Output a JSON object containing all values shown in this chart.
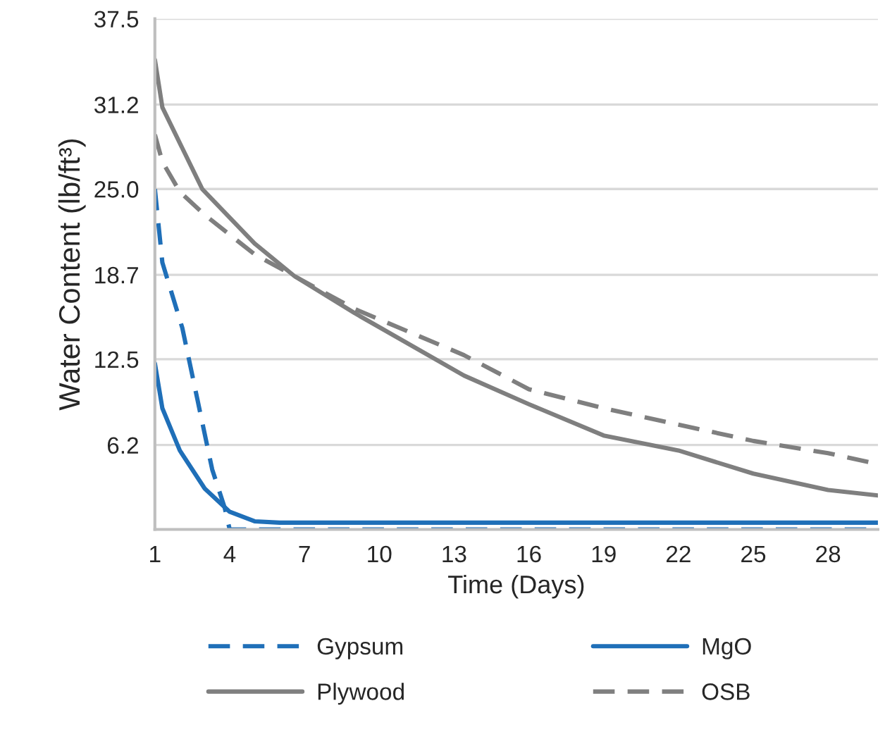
{
  "chart_data": {
    "type": "line",
    "xlabel": "Time (Days)",
    "ylabel": "Water Content (lb/ft³)",
    "xlim": [
      1,
      30
    ],
    "xticks": [
      1,
      4,
      7,
      10,
      13,
      16,
      19,
      22,
      25,
      28
    ],
    "ylim": [
      0,
      37.5
    ],
    "yticks": [
      6.2,
      12.5,
      18.7,
      {
        "value": 25,
        "label": "25.0"
      },
      31.2,
      37.5
    ],
    "grid": "y",
    "legend": "bottom",
    "marker": "none",
    "series": [
      {
        "name": "Gypsum",
        "color": "#1f6fb8",
        "line_style": "dashed",
        "x": [
          1,
          1.3,
          2.1,
          2.7,
          3.3,
          3.8,
          4,
          30
        ],
        "values": [
          25.0,
          19.6,
          14.8,
          9.6,
          4.4,
          1.6,
          0,
          0
        ]
      },
      {
        "name": "MgO",
        "color": "#1f6fb8",
        "line_style": "solid",
        "x": [
          1,
          1.3,
          2,
          3,
          4,
          5,
          6,
          30
        ],
        "values": [
          12.2,
          8.9,
          5.8,
          3.0,
          1.3,
          0.6,
          0.5,
          0.5
        ]
      },
      {
        "name": "Plywood",
        "color": "#7f7f7f",
        "line_style": "solid",
        "x": [
          1,
          1.3,
          2.9,
          5,
          6.6,
          9,
          13.4,
          16,
          19,
          22,
          25,
          28,
          30
        ],
        "values": [
          34.5,
          31.0,
          25.0,
          21.0,
          18.6,
          15.9,
          11.3,
          9.2,
          6.9,
          5.8,
          4.1,
          2.9,
          2.5
        ]
      },
      {
        "name": "OSB",
        "color": "#7f7f7f",
        "line_style": "dashed",
        "x": [
          1,
          1.3,
          2,
          3,
          5,
          9,
          13.4,
          16,
          19,
          22,
          25,
          28,
          30
        ],
        "values": [
          29.0,
          27.0,
          24.8,
          23.1,
          20.2,
          16.2,
          12.8,
          10.3,
          8.9,
          7.7,
          6.5,
          5.6,
          4.8
        ]
      }
    ]
  }
}
